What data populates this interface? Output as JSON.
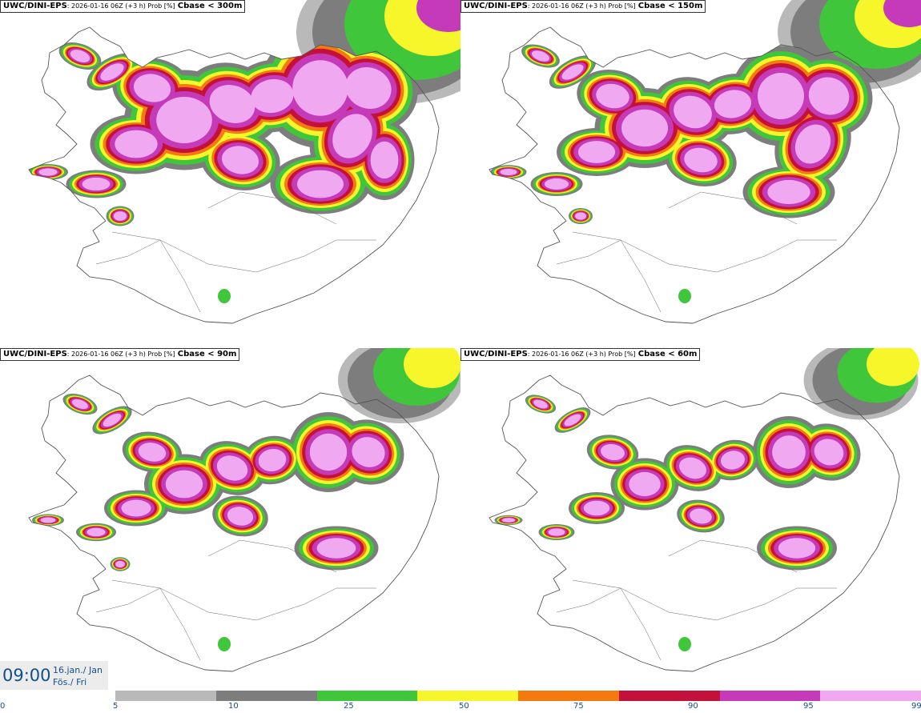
{
  "panels": [
    {
      "model": "UWC/DINI-EPS",
      "run": ": 2026-01-16 06Z (+3 h) Prob [%]",
      "field": "Cbase < 300m"
    },
    {
      "model": "UWC/DINI-EPS",
      "run": ": 2026-01-16 06Z (+3 h) Prob [%]",
      "field": "Cbase < 150m"
    },
    {
      "model": "UWC/DINI-EPS",
      "run": ": 2026-01-16 06Z (+3 h) Prob [%]",
      "field": "Cbase < 90m"
    },
    {
      "model": "UWC/DINI-EPS",
      "run": ": 2026-01-16 06Z (+3 h) Prob [%]",
      "field": "Cbase < 60m"
    }
  ],
  "valid_time": {
    "time": "09:00",
    "date": "16.jan./ Jan",
    "day": "Fös./ Fri"
  },
  "legend": {
    "ticks": [
      "0",
      "5",
      "10",
      "25",
      "50",
      "75",
      "90",
      "95",
      "99"
    ],
    "colors": [
      "#b9b9b9",
      "#7d7d7d",
      "#3fc63a",
      "#f6f62a",
      "#f47a10",
      "#c4113c",
      "#c43ab8",
      "#f0a8f0"
    ]
  }
}
